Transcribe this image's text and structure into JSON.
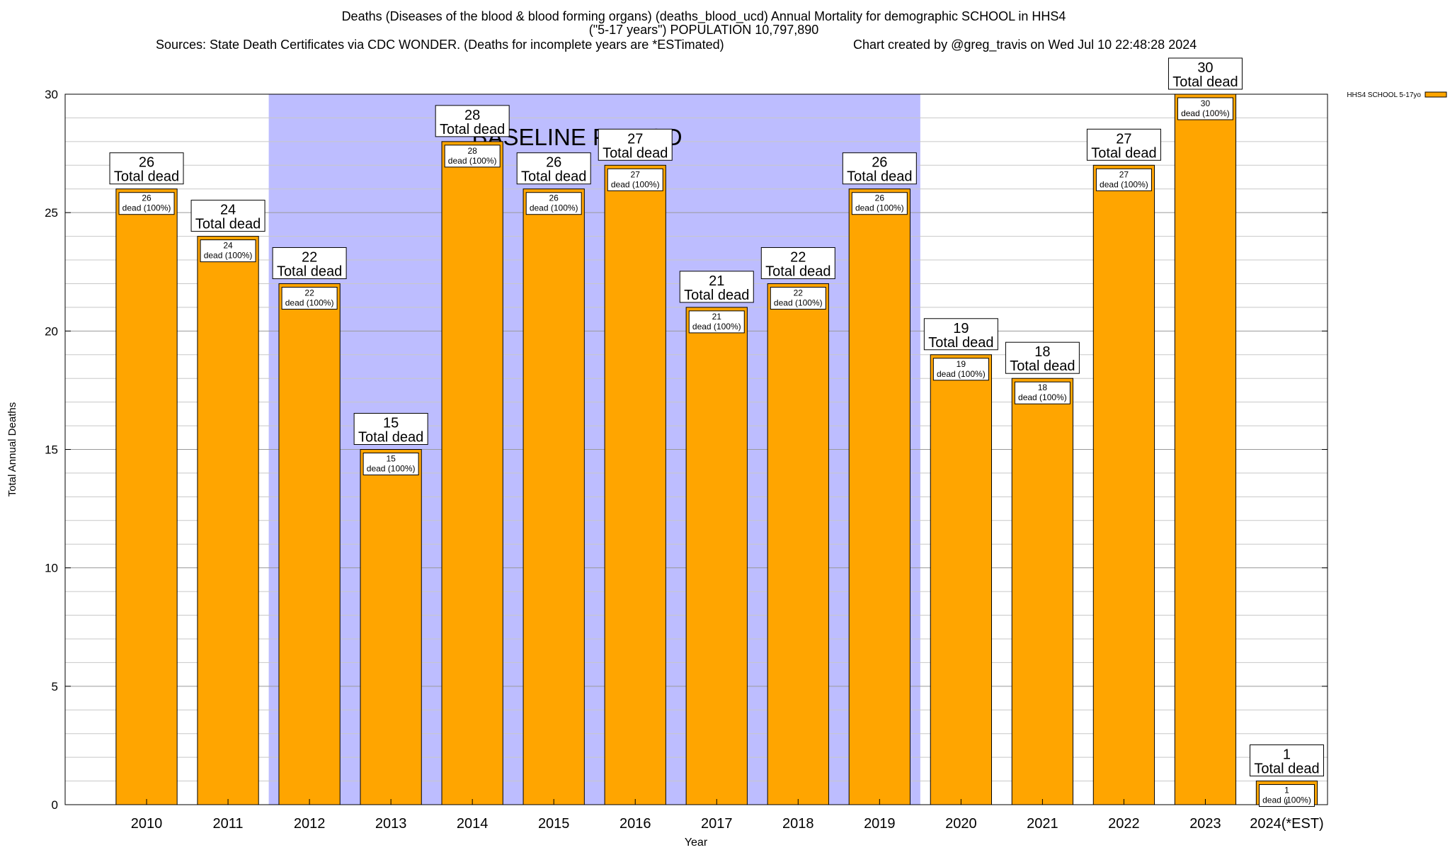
{
  "header": {
    "title_line1": "Deaths (Diseases of the blood & blood forming organs) (deaths_blood_ucd) Annual Mortality for demographic SCHOOL in HHS4",
    "title_line2": "(\"5-17 years\") POPULATION 10,797,890",
    "sources": "Sources: State Death Certificates via CDC WONDER. (Deaths for incomplete years are *ESTimated)",
    "created": "Chart created by @greg_travis on Wed Jul 10 22:48:28 2024"
  },
  "chart_data": {
    "type": "bar",
    "categories": [
      "2010",
      "2011",
      "2012",
      "2013",
      "2014",
      "2015",
      "2016",
      "2017",
      "2018",
      "2019",
      "2020",
      "2021",
      "2022",
      "2023",
      "2024(*EST)"
    ],
    "series": [
      {
        "name": "HHS4 SCHOOL 5-17yo",
        "values": [
          26,
          24,
          22,
          15,
          28,
          26,
          27,
          21,
          22,
          26,
          19,
          18,
          27,
          30,
          1
        ]
      }
    ],
    "xlabel": "Year",
    "ylabel": "Total Annual Deaths",
    "ylim": [
      0,
      30
    ],
    "yticks": [
      0,
      5,
      10,
      15,
      20,
      25,
      30
    ],
    "grid": true,
    "legend": "top-right",
    "baseline": {
      "label": "BASELINE PERIOD",
      "from": "2012",
      "to": "2019"
    },
    "bar_label_suffix": "Total dead",
    "inner_label_suffix": "dead (100%)",
    "colors": {
      "bar": "#FFA500",
      "baseline": "#BDBDFF",
      "grid": "#C8C8C8"
    }
  }
}
